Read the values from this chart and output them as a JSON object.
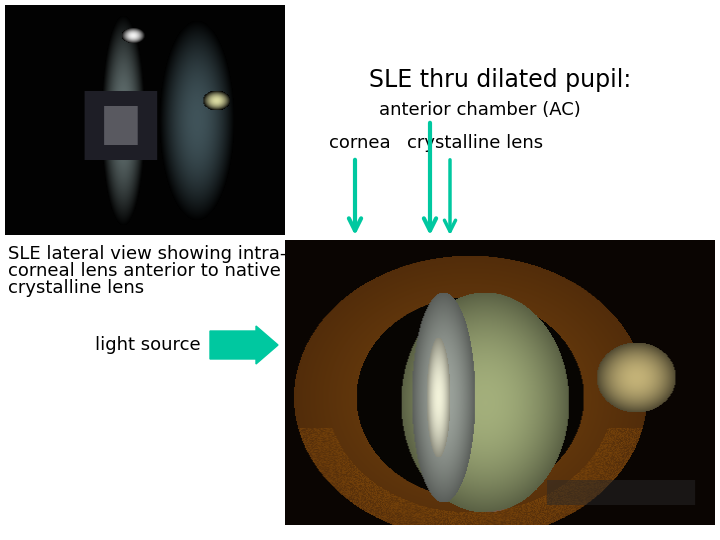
{
  "title": "SLE thru dilated pupil:",
  "subtitle": "anterior chamber (AC)",
  "label_cornea": "cornea",
  "label_crystalline": "crystalline lens",
  "label_lateral_line1": "SLE lateral view showing intra-",
  "label_lateral_line2": "corneal lens anterior to native",
  "label_lateral_line3": "crystalline lens",
  "label_light": "light source",
  "arrow_color": "#00c8a0",
  "text_color": "#000000",
  "bg_color": "#ffffff",
  "title_fontsize": 17,
  "subtitle_fontsize": 13,
  "label_fontsize": 13,
  "small_fontsize": 13
}
